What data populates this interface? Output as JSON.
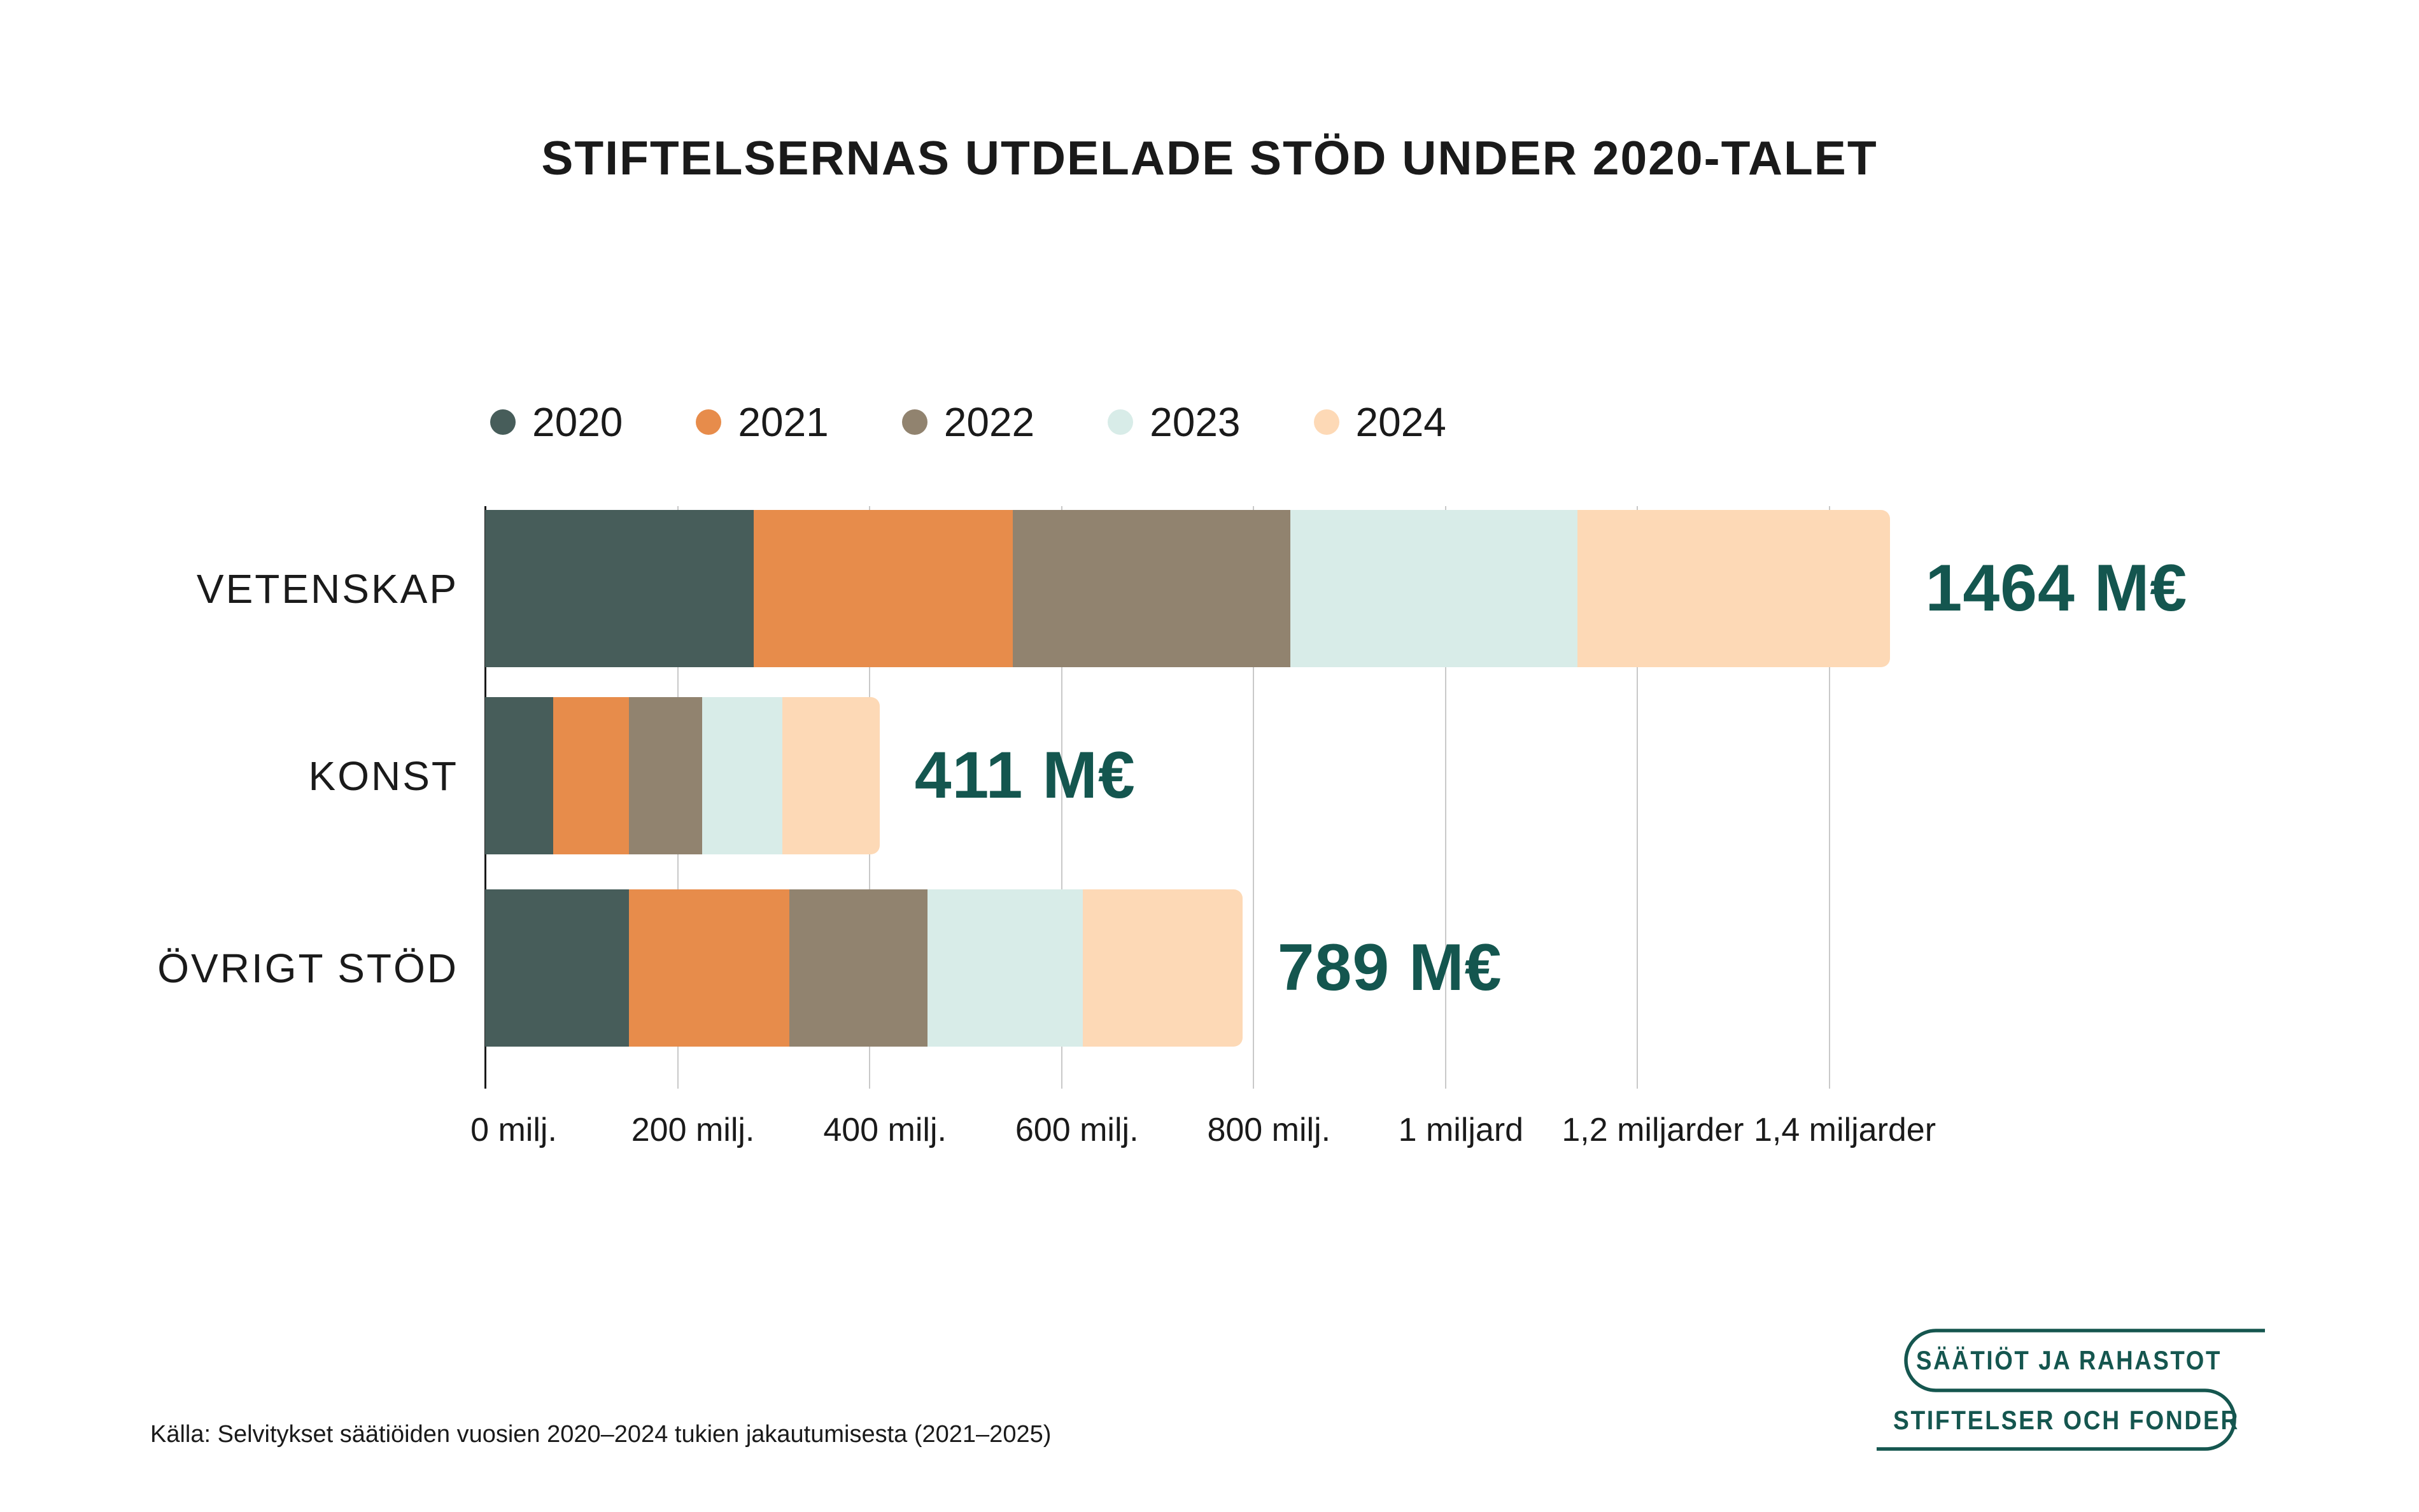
{
  "title": "STIFTELSERNAS UTDELADE STÖD UNDER 2020-TALET",
  "source": "Källa: Selvitykset säätiöiden vuosien 2020–2024 tukien jakautumisesta (2021–2025)",
  "logo": {
    "line1": "SÄÄTIÖT JA RAHASTOT",
    "line2": "STIFTELSER OCH FONDER",
    "color": "#15564F"
  },
  "colors": {
    "accent_teal": "#14564F",
    "gridline": "#C9C9C9",
    "axis_line": "#1A1A1A",
    "text": "#1A1A1A",
    "background": "#FFFFFF"
  },
  "chart_data": {
    "type": "bar",
    "orientation": "horizontal",
    "stacked": true,
    "grid": "vertical",
    "legend_position": "top-left",
    "title": "STIFTELSERNAS UTDELADE STÖD UNDER 2020-TALET",
    "categories": [
      "VETENSKAP",
      "KONST",
      "ÖVRIGT STÖD"
    ],
    "series": [
      {
        "name": "2020",
        "color": "#475D5A",
        "values": [
          280,
          71,
          150
        ]
      },
      {
        "name": "2021",
        "color": "#E78C4B",
        "values": [
          270,
          79,
          167
        ]
      },
      {
        "name": "2022",
        "color": "#91836F",
        "values": [
          289,
          76,
          144
        ]
      },
      {
        "name": "2023",
        "color": "#D8ECE8",
        "values": [
          299,
          84,
          162
        ]
      },
      {
        "name": "2024",
        "color": "#FDD9B6",
        "values": [
          326,
          101,
          166
        ]
      }
    ],
    "totals": [
      1464,
      411,
      789
    ],
    "total_labels": [
      "1464 M€",
      "411 M€",
      "789 M€"
    ],
    "x_ticks": [
      {
        "value": 0,
        "label": "0 milj."
      },
      {
        "value": 200,
        "label": "200 milj."
      },
      {
        "value": 400,
        "label": "400 milj."
      },
      {
        "value": 600,
        "label": "600 milj."
      },
      {
        "value": 800,
        "label": "800 milj."
      },
      {
        "value": 1000,
        "label": "1 miljard"
      },
      {
        "value": 1200,
        "label": "1,2 miljarder"
      },
      {
        "value": 1400,
        "label": "1,4 miljarder"
      }
    ],
    "xlim": [
      0,
      1400
    ],
    "unit": "M€"
  }
}
